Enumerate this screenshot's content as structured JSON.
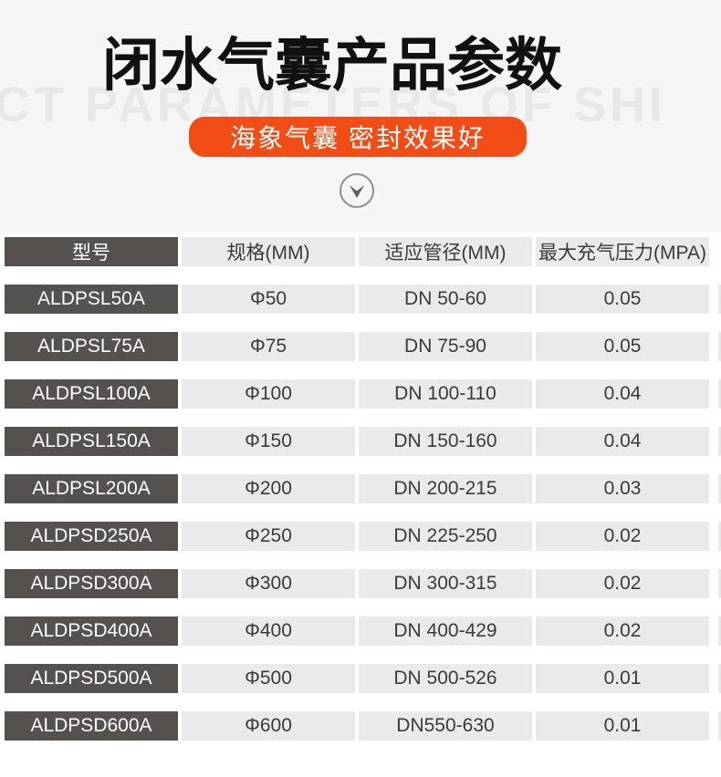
{
  "hero": {
    "title": "闭水气囊产品参数",
    "watermark": "CT PARAMETERS OF SHI",
    "badge": "海象气囊 密封效果好"
  },
  "colors": {
    "hero_background": "#f5f5f6",
    "badge_orange": "#f24d17",
    "dark_cell": "#55514e",
    "light_cell": "#eae9eb",
    "watermark_gray": "#e8e8e9"
  },
  "icons": {
    "scroll_down": "chevron-down-icon"
  },
  "table": {
    "headers": [
      "型号",
      "规格(MM)",
      "适应管径(MM)",
      "最大充气压力(MPA)"
    ],
    "rows": [
      [
        "ALDPSL50A",
        "Φ50",
        "DN 50-60",
        "0.05"
      ],
      [
        "ALDPSL75A",
        "Φ75",
        "DN 75-90",
        "0.05"
      ],
      [
        "ALDPSL100A",
        "Φ100",
        "DN 100-110",
        "0.04"
      ],
      [
        "ALDPSL150A",
        "Φ150",
        "DN 150-160",
        "0.04"
      ],
      [
        "ALDPSL200A",
        "Φ200",
        "DN 200-215",
        "0.03"
      ],
      [
        "ALDPSD250A",
        "Φ250",
        "DN 225-250",
        "0.02"
      ],
      [
        "ALDPSD300A",
        "Φ300",
        "DN 300-315",
        "0.02"
      ],
      [
        "ALDPSD400A",
        "Φ400",
        "DN 400-429",
        "0.02"
      ],
      [
        "ALDPSD500A",
        "Φ500",
        "DN 500-526",
        "0.01"
      ],
      [
        "ALDPSD600A",
        "Φ600",
        "DN550-630",
        "0.01"
      ]
    ]
  }
}
